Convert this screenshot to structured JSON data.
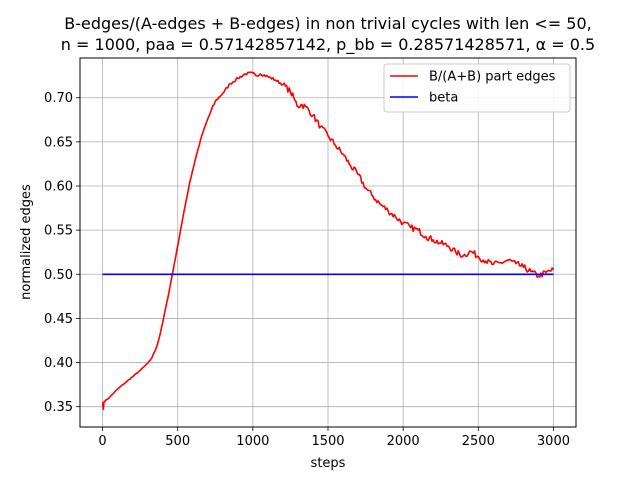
{
  "chart_data": {
    "type": "line",
    "title_lines": [
      "B-edges/(A-edges + B-edges) in non trivial cycles with len <= 50,",
      "n = 1000, paa = 0.57142857142, p_bb = 0.28571428571, α = 0.5"
    ],
    "xlabel": "steps",
    "ylabel": "normalized edges",
    "xlim": [
      -150,
      3150
    ],
    "ylim": [
      0.327,
      0.745
    ],
    "xticks": [
      0,
      500,
      1000,
      1500,
      2000,
      2500,
      3000
    ],
    "yticks": [
      0.35,
      0.4,
      0.45,
      0.5,
      0.55,
      0.6,
      0.65,
      0.7
    ],
    "grid": true,
    "legend_position": "upper right",
    "series": [
      {
        "name": "B/(A+B) part edges",
        "color": "#ff0000",
        "x": [
          0,
          5,
          10,
          30,
          60,
          100,
          150,
          200,
          250,
          300,
          330,
          360,
          380,
          400,
          420,
          440,
          460,
          480,
          500,
          520,
          550,
          580,
          620,
          660,
          700,
          750,
          800,
          850,
          900,
          950,
          1000,
          1020,
          1050,
          1100,
          1150,
          1200,
          1250,
          1280,
          1300,
          1320,
          1350,
          1400,
          1450,
          1500,
          1550,
          1600,
          1650,
          1700,
          1750,
          1800,
          1850,
          1900,
          1950,
          2000,
          2050,
          2100,
          2150,
          2200,
          2250,
          2300,
          2350,
          2400,
          2450,
          2500,
          2550,
          2600,
          2650,
          2700,
          2750,
          2800,
          2850,
          2900,
          2950,
          3000
        ],
        "y": [
          0.355,
          0.347,
          0.356,
          0.358,
          0.363,
          0.37,
          0.377,
          0.384,
          0.391,
          0.399,
          0.406,
          0.418,
          0.43,
          0.445,
          0.462,
          0.478,
          0.496,
          0.514,
          0.532,
          0.551,
          0.578,
          0.604,
          0.632,
          0.657,
          0.676,
          0.696,
          0.705,
          0.716,
          0.722,
          0.727,
          0.728,
          0.725,
          0.727,
          0.724,
          0.72,
          0.715,
          0.707,
          0.697,
          0.69,
          0.692,
          0.69,
          0.68,
          0.667,
          0.657,
          0.646,
          0.636,
          0.623,
          0.613,
          0.598,
          0.588,
          0.579,
          0.572,
          0.565,
          0.558,
          0.553,
          0.55,
          0.543,
          0.539,
          0.535,
          0.532,
          0.525,
          0.521,
          0.526,
          0.52,
          0.515,
          0.511,
          0.513,
          0.516,
          0.512,
          0.508,
          0.503,
          0.498,
          0.502,
          0.505
        ]
      },
      {
        "name": "beta",
        "color": "#0000ff",
        "x": [
          0,
          3000
        ],
        "y": [
          0.5,
          0.5
        ]
      }
    ]
  }
}
